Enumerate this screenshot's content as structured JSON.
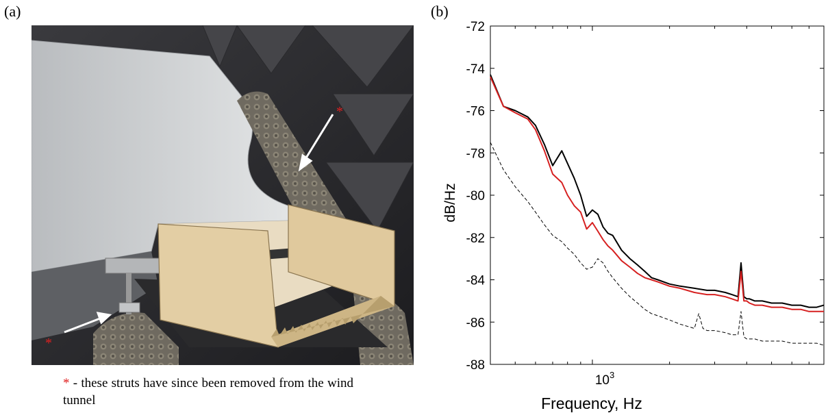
{
  "panels": {
    "a_label": "(a)",
    "b_label": "(b)"
  },
  "photo": {
    "alt": "wind tunnel test section with serrated trailing edge plate",
    "marker": "*"
  },
  "caption": {
    "star": "*",
    "text": " - these struts have since been removed from the wind tunnel"
  },
  "colors": {
    "red_series": "#d62020",
    "black_series": "#000000",
    "dashed_series": "#000000",
    "marker": "#e02020"
  },
  "chart_data": {
    "type": "line",
    "title": "",
    "xlabel": "Frequency, Hz",
    "ylabel": "dB/Hz",
    "xscale": "log",
    "xlim": [
      400,
      8000
    ],
    "ylim": [
      -88,
      -72
    ],
    "yticks": [
      -88,
      -86,
      -84,
      -82,
      -80,
      -78,
      -76,
      -74,
      -72
    ],
    "ytick_labels": [
      "-88",
      "-86",
      "-84",
      "-82",
      "-80",
      "-78",
      "-76",
      "-74",
      "-72"
    ],
    "xtick_label": {
      "base": "10",
      "exponent": "3",
      "value": 1000
    },
    "grid": false,
    "series": [
      {
        "style": "solid",
        "color": "black",
        "x": [
          400,
          450,
          500,
          560,
          600,
          650,
          700,
          760,
          800,
          850,
          900,
          950,
          1000,
          1050,
          1100,
          1150,
          1200,
          1300,
          1400,
          1500,
          1600,
          1700,
          1800,
          2000,
          2200,
          2500,
          2800,
          3000,
          3300,
          3500,
          3700,
          3800,
          3900,
          4000,
          4100,
          4300,
          4600,
          5000,
          5500,
          6000,
          6500,
          7000,
          7500,
          8000
        ],
        "y": [
          -74.3,
          -75.8,
          -76.0,
          -76.3,
          -76.7,
          -77.6,
          -78.6,
          -77.9,
          -78.5,
          -79.2,
          -80.0,
          -81.0,
          -80.7,
          -80.9,
          -81.5,
          -81.8,
          -81.9,
          -82.6,
          -83.0,
          -83.3,
          -83.6,
          -83.9,
          -84.0,
          -84.2,
          -84.3,
          -84.4,
          -84.5,
          -84.5,
          -84.6,
          -84.7,
          -84.8,
          -83.2,
          -84.8,
          -84.9,
          -84.9,
          -85.0,
          -85.0,
          -85.1,
          -85.1,
          -85.2,
          -85.2,
          -85.3,
          -85.3,
          -85.2
        ]
      },
      {
        "style": "solid",
        "color": "red",
        "x": [
          400,
          450,
          500,
          560,
          600,
          650,
          700,
          760,
          800,
          850,
          900,
          950,
          1000,
          1050,
          1100,
          1150,
          1200,
          1300,
          1400,
          1500,
          1600,
          1700,
          1800,
          2000,
          2200,
          2500,
          2800,
          3000,
          3300,
          3500,
          3700,
          3800,
          3900,
          4000,
          4100,
          4300,
          4600,
          5000,
          5500,
          6000,
          6500,
          7000,
          7500,
          8000
        ],
        "y": [
          -74.4,
          -75.8,
          -76.1,
          -76.4,
          -76.9,
          -77.9,
          -79.0,
          -79.4,
          -80.0,
          -80.5,
          -80.8,
          -81.6,
          -81.3,
          -81.7,
          -82.1,
          -82.4,
          -82.6,
          -83.1,
          -83.4,
          -83.7,
          -83.9,
          -84.0,
          -84.1,
          -84.3,
          -84.4,
          -84.6,
          -84.7,
          -84.7,
          -84.8,
          -84.9,
          -85.0,
          -83.6,
          -85.0,
          -85.0,
          -85.1,
          -85.2,
          -85.2,
          -85.3,
          -85.3,
          -85.4,
          -85.4,
          -85.5,
          -85.5,
          -85.5
        ]
      },
      {
        "style": "dashed",
        "color": "black",
        "x": [
          400,
          450,
          500,
          560,
          600,
          650,
          700,
          760,
          800,
          850,
          900,
          950,
          1000,
          1050,
          1100,
          1150,
          1200,
          1300,
          1400,
          1500,
          1600,
          1700,
          1800,
          2000,
          2200,
          2500,
          2600,
          2700,
          2800,
          3000,
          3300,
          3500,
          3700,
          3800,
          3900,
          4000,
          4100,
          4300,
          4600,
          5000,
          5500,
          6000,
          6500,
          7000,
          7500,
          8000
        ],
        "y": [
          -77.5,
          -78.8,
          -79.6,
          -80.3,
          -80.8,
          -81.4,
          -81.9,
          -82.2,
          -82.5,
          -82.8,
          -83.2,
          -83.5,
          -83.4,
          -83.0,
          -83.2,
          -83.6,
          -83.9,
          -84.4,
          -84.8,
          -85.1,
          -85.4,
          -85.6,
          -85.7,
          -85.9,
          -86.1,
          -86.3,
          -85.6,
          -86.3,
          -86.4,
          -86.4,
          -86.5,
          -86.6,
          -86.6,
          -85.5,
          -86.7,
          -86.8,
          -86.8,
          -86.8,
          -86.9,
          -86.9,
          -86.9,
          -87.0,
          -87.0,
          -87.0,
          -87.0,
          -87.1
        ]
      }
    ]
  }
}
